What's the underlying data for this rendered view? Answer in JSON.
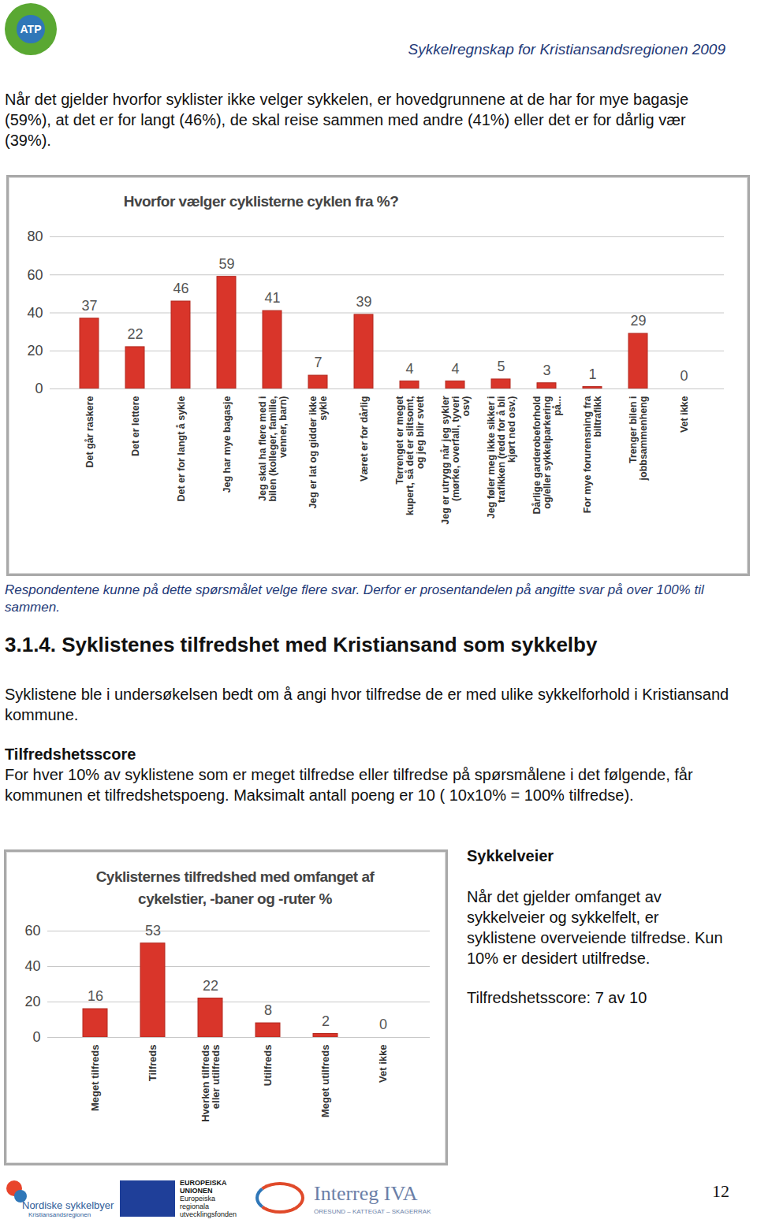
{
  "document": {
    "header": {
      "logo": "ATP",
      "title": "Sykkelregnskap for Kristiansandsregionen 2009"
    },
    "intro": "Når det gjelder hvorfor syklister ikke velger sykkelen, er hovedgrunnene at de har for mye bagasje (59%), at det er for langt (46%), de skal reise sammen med andre (41%) eller det er for dårlig vær (39%).",
    "caption": "Respondentene kunne på dette spørsmålet velge flere svar. Derfor er prosentandelen på angitte svar på over 100% til sammen.",
    "section_heading": "3.1.4. Syklistenes tilfredshet med Kristiansand som sykkelby",
    "section_text": "Syklistene ble i undersøkelsen bedt om å angi hvor tilfredse de er med ulike sykkelforhold i Kristiansand kommune.",
    "score_heading": "Tilfredshetsscore",
    "score_text": "For hver 10% av syklistene som er meget tilfredse eller tilfredse på spørsmålene i det følgende, får kommunen et tilfredshetspoeng. Maksimalt antall poeng er 10 ( 10x10% = 100% tilfredse).",
    "side": {
      "heading": "Sykkelveier",
      "text": "Når det gjelder omfanget av sykkelveier og sykkelfelt, er syklistene overveiende tilfredse. Kun 10% er desidert utilfredse.",
      "score": "Tilfredshetsscore: 7 av 10"
    },
    "footer": {
      "nordic": "Nordiske sykkelbyer",
      "nordic_sub": "Kristiansandsregionen",
      "eu": "EUROPEISKA\nUNIONEN",
      "eu_sub": "Europeiska\nregionala\nutvecklingsfonden",
      "interreg": "Interreg IVA",
      "interreg_sub": "ÖRESUND – KATTEGAT – SKAGERRAK"
    },
    "page_number": "12"
  },
  "chart_data": [
    {
      "type": "bar",
      "title": "Hvorfor vælger cyklisterne cyklen fra  %?",
      "categories": [
        "Det går raskere",
        "Det er lettere",
        "Det er for langt å sykle",
        "Jeg har mye bagasje",
        "Jeg skal ha flere med i\nbilen (kolleger, familie,\nvenner, barn)",
        "Jeg er lat og gidder ikke\nsykle",
        "Været er for dårlig",
        "Terrenget er meget\nkupert, så det er slitsomt,\nog jeg blir svett",
        "Jeg er utrygg når jeg sykler\n(mørke, overfall, tyveri\nosv)",
        "Jeg føler meg ikke sikker i\ntrafikken (redd for å bli\nkjørt ned osv.)",
        "Dårlige garderobeforhold\nog/eller sykkelparkering\npå...",
        "For mye forurensning fra\nbiltrafikk",
        "Trenger bilen i\njobbsammenheng",
        "Vet ikke"
      ],
      "values": [
        37,
        22,
        46,
        59,
        41,
        7,
        39,
        4,
        4,
        5,
        3,
        1,
        29,
        0
      ],
      "color": "#d9352a",
      "ylim": [
        0,
        80
      ],
      "yticks": [
        0,
        20,
        40,
        60,
        80
      ],
      "grid": true,
      "data_labels": true
    },
    {
      "type": "bar",
      "title": "Cyklisternes tilfredshed med omfanget af\ncykelstier, -baner og -ruter %",
      "categories": [
        "Meget tilfreds",
        "Tilfreds",
        "Hverken tilfreds\neller utilfreds",
        "Utilfreds",
        "Meget utilfreds",
        "Vet ikke"
      ],
      "values": [
        16,
        53,
        22,
        8,
        2,
        0
      ],
      "color": "#d9352a",
      "ylim": [
        0,
        60
      ],
      "yticks": [
        0,
        20,
        40,
        60
      ],
      "grid": true,
      "data_labels": true
    }
  ]
}
